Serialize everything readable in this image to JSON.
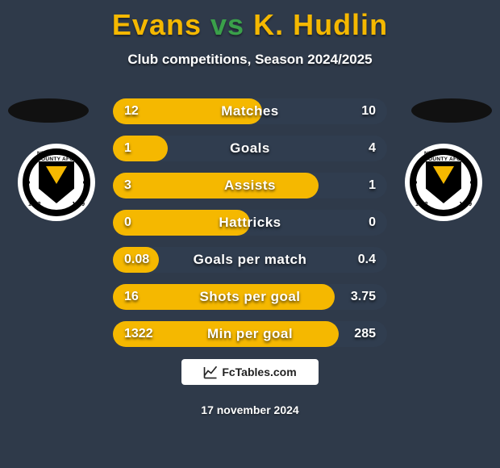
{
  "background_color": "#2f3a4a",
  "title": {
    "player1": "Evans",
    "vs": "vs",
    "player2": "K. Hudlin",
    "player1_color": "#f5b800",
    "vs_color": "#3aa04a",
    "player2_color": "#f5b800"
  },
  "subtitle": "Club competitions, Season 2024/2025",
  "shirts": {
    "left_color": "#111111",
    "right_color": "#111111"
  },
  "badges": {
    "left": {
      "top_text": "NEWPORT COUNTY AFC",
      "year_left": "1912",
      "year_right": "1989"
    },
    "right": {
      "top_text": "NEWPORT COUNTY AFC",
      "year_left": "1912",
      "year_right": "1989"
    }
  },
  "bars": {
    "track_color": "#303d4f",
    "fill_color": "#f5b800",
    "bar_radius": 16,
    "rows": [
      {
        "label": "Matches",
        "left": "12",
        "right": "10",
        "fill_pct": 54.5
      },
      {
        "label": "Goals",
        "left": "1",
        "right": "4",
        "fill_pct": 20.0
      },
      {
        "label": "Assists",
        "left": "3",
        "right": "1",
        "fill_pct": 75.0
      },
      {
        "label": "Hattricks",
        "left": "0",
        "right": "0",
        "fill_pct": 50.0
      },
      {
        "label": "Goals per match",
        "left": "0.08",
        "right": "0.4",
        "fill_pct": 16.7
      },
      {
        "label": "Shots per goal",
        "left": "16",
        "right": "3.75",
        "fill_pct": 81.0
      },
      {
        "label": "Min per goal",
        "left": "1322",
        "right": "285",
        "fill_pct": 82.3
      }
    ]
  },
  "footer": {
    "site": "FcTables.com",
    "date": "17 november 2024"
  }
}
